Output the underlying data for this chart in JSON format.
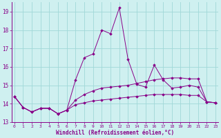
{
  "xlabel": "Windchill (Refroidissement éolien,°C)",
  "background_color": "#cff0f0",
  "grid_color": "#a0d8d8",
  "line_color": "#880088",
  "x_values": [
    0,
    1,
    2,
    3,
    4,
    5,
    6,
    7,
    8,
    9,
    10,
    11,
    12,
    13,
    14,
    15,
    16,
    17,
    18,
    19,
    20,
    21,
    22,
    23
  ],
  "series1": [
    14.4,
    13.8,
    13.55,
    13.75,
    13.75,
    13.45,
    13.65,
    13.95,
    14.05,
    14.15,
    14.2,
    14.25,
    14.3,
    14.35,
    14.4,
    14.45,
    14.5,
    14.5,
    14.5,
    14.5,
    14.45,
    14.45,
    14.1,
    14.05
  ],
  "series2": [
    14.4,
    13.8,
    13.55,
    13.75,
    13.75,
    13.45,
    13.65,
    15.3,
    16.5,
    16.7,
    18.0,
    17.8,
    19.2,
    16.4,
    15.05,
    14.9,
    16.1,
    15.3,
    14.85,
    14.9,
    15.0,
    14.9,
    14.1,
    14.05
  ],
  "series3": [
    14.4,
    13.8,
    13.55,
    13.75,
    13.75,
    13.45,
    13.65,
    14.2,
    14.5,
    14.7,
    14.85,
    14.9,
    14.95,
    15.0,
    15.1,
    15.2,
    15.3,
    15.35,
    15.4,
    15.4,
    15.35,
    15.35,
    14.1,
    14.05
  ],
  "ylim": [
    13.0,
    19.5
  ],
  "yticks": [
    13,
    14,
    15,
    16,
    17,
    18,
    19
  ],
  "xtick_labels": [
    "0",
    "1",
    "2",
    "3",
    "4",
    "5",
    "6",
    "7",
    "8",
    "9",
    "10",
    "11",
    "12",
    "13",
    "14",
    "15",
    "16",
    "17",
    "18",
    "19",
    "20",
    "21",
    "22",
    "23"
  ]
}
